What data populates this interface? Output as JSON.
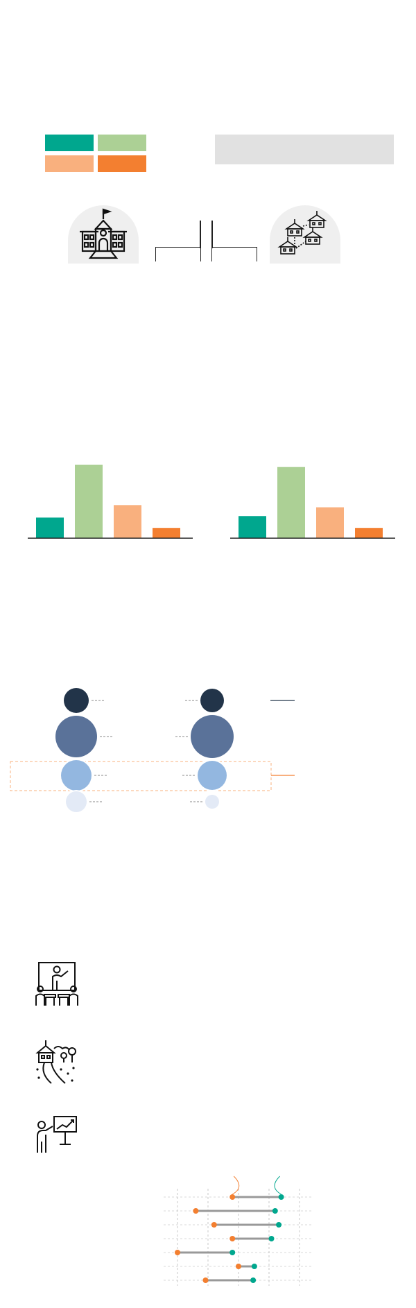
{
  "colors": {
    "teal": "#00a78e",
    "light_green": "#acd095",
    "peach": "#f9b07e",
    "orange": "#f37f30",
    "navy": "#223449",
    "slate_blue": "#5a7299",
    "light_blue": "#93b7e0",
    "pale_blue": "#e3eaf6",
    "gray_bar": "#e1e1e1",
    "dumbbell_gray": "#999999"
  },
  "legend": {
    "swatches": [
      "teal",
      "light_green",
      "peach",
      "orange"
    ]
  },
  "header": {
    "title": ""
  },
  "icons": {
    "single_school": "school-building-icon",
    "school_network": "school-network-icon",
    "classroom_teacher": "classroom-teacher-icon",
    "campus_path": "campus-path-icon",
    "presentation": "presentation-board-icon"
  },
  "chart_data": [
    {
      "type": "bar",
      "categories": [
        "",
        "",
        "",
        ""
      ],
      "values": [
        28,
        100,
        45,
        14
      ],
      "colors": [
        "#00a78e",
        "#acd095",
        "#f9b07e",
        "#f37f30"
      ],
      "ylim": [
        0,
        100
      ],
      "grid": false
    },
    {
      "type": "bar",
      "categories": [
        "",
        "",
        "",
        ""
      ],
      "values": [
        30,
        97,
        42,
        14
      ],
      "colors": [
        "#00a78e",
        "#acd095",
        "#f9b07e",
        "#f37f30"
      ],
      "ylim": [
        0,
        100
      ],
      "grid": false
    },
    {
      "type": "scatter",
      "series": [
        {
          "values": [
            18,
            30,
            22,
            15
          ],
          "colors": [
            "#223449",
            "#5a7299",
            "#93b7e0",
            "#e3eaf6"
          ]
        },
        {
          "values": [
            17,
            31,
            21,
            10
          ],
          "colors": [
            "#223449",
            "#5a7299",
            "#93b7e0",
            "#e3eaf6"
          ]
        }
      ],
      "grid": false
    },
    {
      "type": "dumbbell",
      "xlim": [
        0,
        100
      ],
      "rows": [
        {
          "start": 45,
          "end": 85
        },
        {
          "start": 15,
          "end": 80
        },
        {
          "start": 30,
          "end": 83
        },
        {
          "start": 45,
          "end": 77
        },
        {
          "start": 0,
          "end": 45
        },
        {
          "start": 50,
          "end": 63
        },
        {
          "start": 23,
          "end": 62
        }
      ],
      "start_color": "#f37f30",
      "end_color": "#00a78e",
      "grid": true
    }
  ]
}
